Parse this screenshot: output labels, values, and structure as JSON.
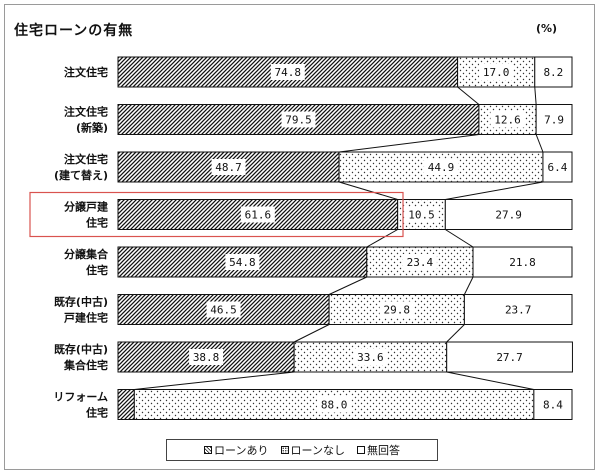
{
  "title": "住宅ローンの有無",
  "unit": "(%)",
  "colors": {
    "line": "#111111",
    "highlight": "#d9534f",
    "label_bg": "#ffffff"
  },
  "chart_data": {
    "type": "bar",
    "orientation": "horizontal",
    "stacked": true,
    "xlim": [
      0,
      100
    ],
    "categories": [
      [
        "注文住宅"
      ],
      [
        "注文住宅",
        "(新築)"
      ],
      [
        "注文住宅",
        "(建て替え)"
      ],
      [
        "分譲戸建",
        "住宅"
      ],
      [
        "分譲集合",
        "住宅"
      ],
      [
        "既存(中古)",
        "戸建住宅"
      ],
      [
        "既存(中古)",
        "集合住宅"
      ],
      [
        "リフォーム",
        "住宅"
      ]
    ],
    "series": [
      {
        "name": "ローンあり",
        "pattern": "hatch",
        "values": [
          74.8,
          79.5,
          48.7,
          61.6,
          54.8,
          46.5,
          38.8,
          3.6
        ]
      },
      {
        "name": "ローンなし",
        "pattern": "dots",
        "values": [
          17.0,
          12.6,
          44.9,
          10.5,
          23.4,
          29.8,
          33.6,
          88.0
        ]
      },
      {
        "name": "無回答",
        "pattern": "blank",
        "values": [
          8.2,
          7.9,
          6.4,
          27.9,
          21.8,
          23.7,
          27.7,
          8.4
        ]
      }
    ],
    "labels": [
      [
        "74.8",
        "17.0",
        "8.2"
      ],
      [
        "79.5",
        "12.6",
        "7.9"
      ],
      [
        "48.7",
        "44.9",
        "6.4"
      ],
      [
        "61.6",
        "10.5",
        "27.9"
      ],
      [
        "54.8",
        "23.4",
        "21.8"
      ],
      [
        "46.5",
        "29.8",
        "23.7"
      ],
      [
        "38.8",
        "33.6",
        "27.7"
      ],
      [
        "",
        "88.0",
        "8.4"
      ]
    ],
    "highlighted_category": "分譲戸建住宅",
    "legend": [
      "ローンあり",
      "ローンなし",
      "無回答"
    ],
    "legend_position": "bottom-center",
    "grid": false
  }
}
